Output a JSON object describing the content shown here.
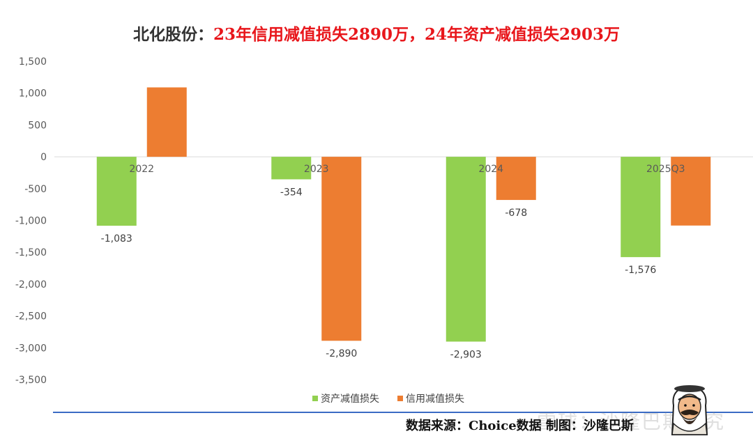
{
  "title": {
    "prefix": "北化股份：",
    "main": "23年信用减值损失2890万，24年资产减值损失2903万"
  },
  "footer": {
    "source": "数据来源：Choice数据  制图：沙隆巴斯",
    "watermark": "雪球：沙隆巴斯研究"
  },
  "colors": {
    "asset_impairment": "#92d050",
    "credit_impairment": "#ed7d31",
    "title_red": "#e8161b",
    "footer_line": "#3a6bc4"
  },
  "icons": {
    "mascot": "bearded-man-keffiyeh-avatar"
  },
  "chart_data": {
    "type": "bar",
    "categories": [
      "2022",
      "2023",
      "2024",
      "2025Q3"
    ],
    "series": [
      {
        "name": "资产减值损失",
        "values": [
          -1083,
          -354,
          -2903,
          -1576
        ],
        "labels": [
          "-1,083",
          "-354",
          "-2,903",
          "-1,576"
        ]
      },
      {
        "name": "信用减值损失",
        "values": [
          1090,
          -2890,
          -678,
          -1080
        ],
        "labels": [
          "",
          "-2,890",
          "-678",
          ""
        ]
      }
    ],
    "yticks": [
      "1,500",
      "1,000",
      "500",
      "0",
      "-500",
      "-1,000",
      "-1,500",
      "-2,000",
      "-2,500",
      "-3,000",
      "-3,500"
    ],
    "ylim": [
      -3500,
      1500
    ],
    "grid": false,
    "legend_position": "bottom"
  }
}
